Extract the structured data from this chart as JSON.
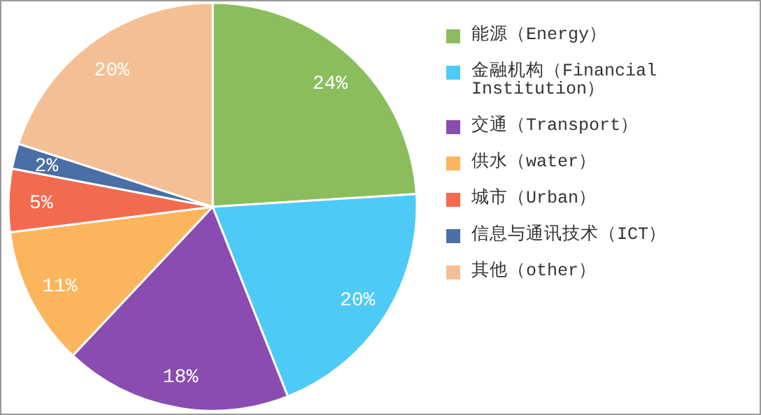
{
  "chart_data": {
    "type": "pie",
    "categories": [
      "能源（Energy）",
      "金融机构（Financial Institution）",
      "交通（Transport）",
      "供水（water）",
      "城市（Urban）",
      "信息与通讯技术（ICT）",
      "其他（other）"
    ],
    "values": [
      24,
      20,
      18,
      11,
      5,
      2,
      20
    ],
    "colors": [
      "#8cbd5d",
      "#4ecaf7",
      "#8a4cb1",
      "#fbb55c",
      "#f26b4f",
      "#4a6ea6",
      "#f5bf95"
    ],
    "value_labels": [
      "24%",
      "20%",
      "18%",
      "11%",
      "5%",
      "2%",
      "20%"
    ],
    "legend": "right"
  }
}
